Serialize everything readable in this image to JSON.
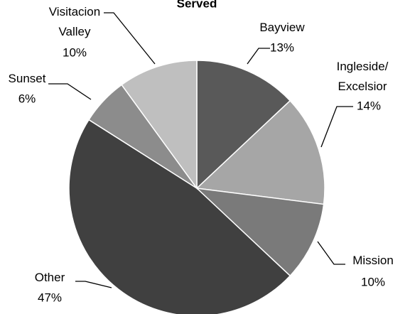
{
  "chart_data": {
    "type": "pie",
    "title": "Served",
    "categories": [
      "Bayview",
      "Ingleside/ Excelsior",
      "Mission",
      "Other",
      "Sunset",
      "Visitacion Valley"
    ],
    "values": [
      13,
      14,
      10,
      47,
      6,
      10
    ],
    "value_labels": [
      "13%",
      "14%",
      "10%",
      "47%",
      "6%",
      "10%"
    ],
    "colors": [
      "#595959",
      "#a6a6a6",
      "#7a7a7a",
      "#404040",
      "#8c8c8c",
      "#bfbfbf"
    ]
  }
}
